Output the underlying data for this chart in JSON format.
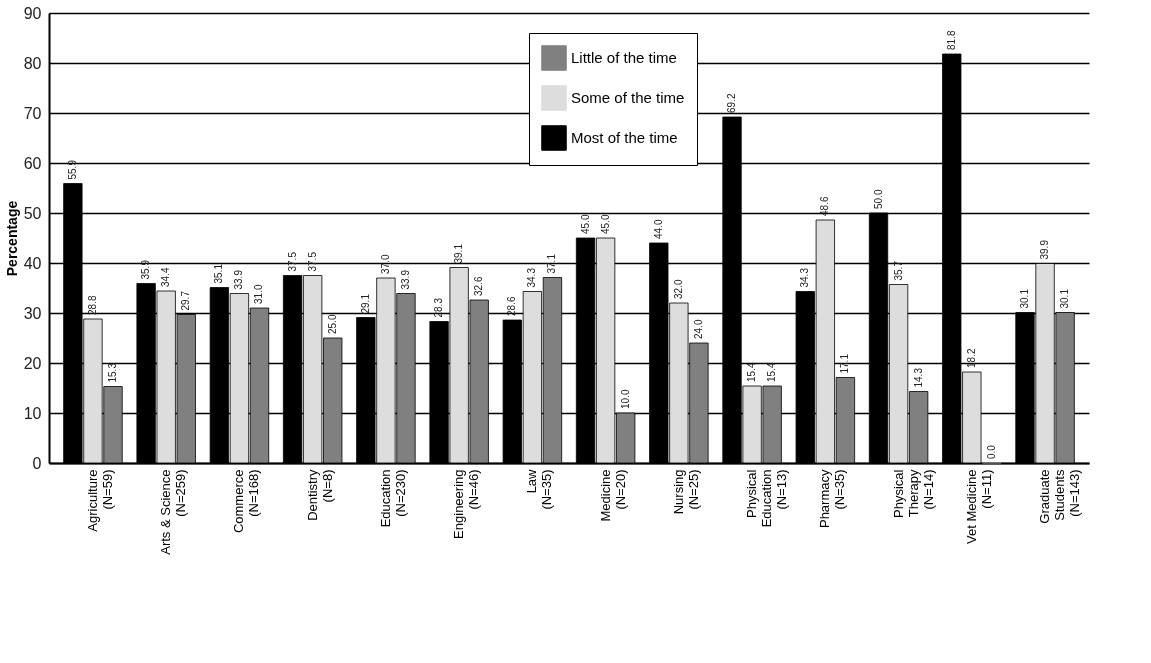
{
  "chart_data": {
    "type": "bar",
    "ylabel": "Percentage",
    "categories": [
      "Agriculture\n(N=59)",
      "Arts & Science\n(N=259)",
      "Commerce\n(N=168)",
      "Dentistry\n(N=8)",
      "Education\n(N=230)",
      "Engineering\n(N=46)",
      "Law\n(N=35)",
      "Medicine\n(N=20)",
      "Nursing\n(N=25)",
      "Physical\nEducation\n(N=13)",
      "Pharmacy\n(N=35)",
      "Physical\nTherapy\n(N=14)",
      "Vet Medicine\n(N=11)",
      "Graduate\nStudents\n(N=143)"
    ],
    "series": [
      {
        "name": "Most of the time",
        "color": "#000000",
        "values": [
          55.9,
          35.9,
          35.1,
          37.5,
          29.1,
          28.3,
          28.6,
          45.0,
          44.0,
          69.2,
          34.3,
          50.0,
          81.8,
          30.1
        ],
        "value_labels": [
          "55.9",
          "35.9",
          "35.1",
          "37.5",
          "29.1",
          "28.3",
          "28.6",
          "45.0",
          "44.0",
          "69.2",
          "34.3",
          "50.0",
          "81.8",
          "30.1"
        ]
      },
      {
        "name": "Some of the time",
        "color": "#dddddd",
        "values": [
          28.8,
          34.4,
          33.9,
          37.5,
          37.0,
          39.1,
          34.3,
          45.0,
          32.0,
          15.4,
          48.6,
          35.7,
          18.2,
          39.9
        ],
        "value_labels": [
          "28.8",
          "34.4",
          "33.9",
          "37.5",
          "37.0",
          "39.1",
          "34.3",
          "45.0",
          "32.0",
          "15.4",
          "48.6",
          "35.7",
          "18.2",
          "39.9"
        ]
      },
      {
        "name": "Little of the time",
        "color": "#808080",
        "values": [
          15.3,
          29.7,
          31.0,
          25.0,
          33.9,
          32.6,
          37.1,
          10.0,
          24.0,
          15.4,
          17.1,
          14.3,
          0.0,
          30.1
        ],
        "value_labels": [
          "15.3",
          "29.7",
          "31.0",
          "25.0",
          "33.9",
          "32.6",
          "37.1",
          "10.0",
          "24.0",
          "15.4",
          "17.1",
          "14.3",
          "0.0",
          "30.1"
        ]
      }
    ],
    "ylim": [
      0,
      90
    ],
    "yticks": [
      0,
      10,
      20,
      30,
      40,
      50,
      60,
      70,
      80,
      90
    ],
    "grid": "y",
    "legend": "top"
  }
}
